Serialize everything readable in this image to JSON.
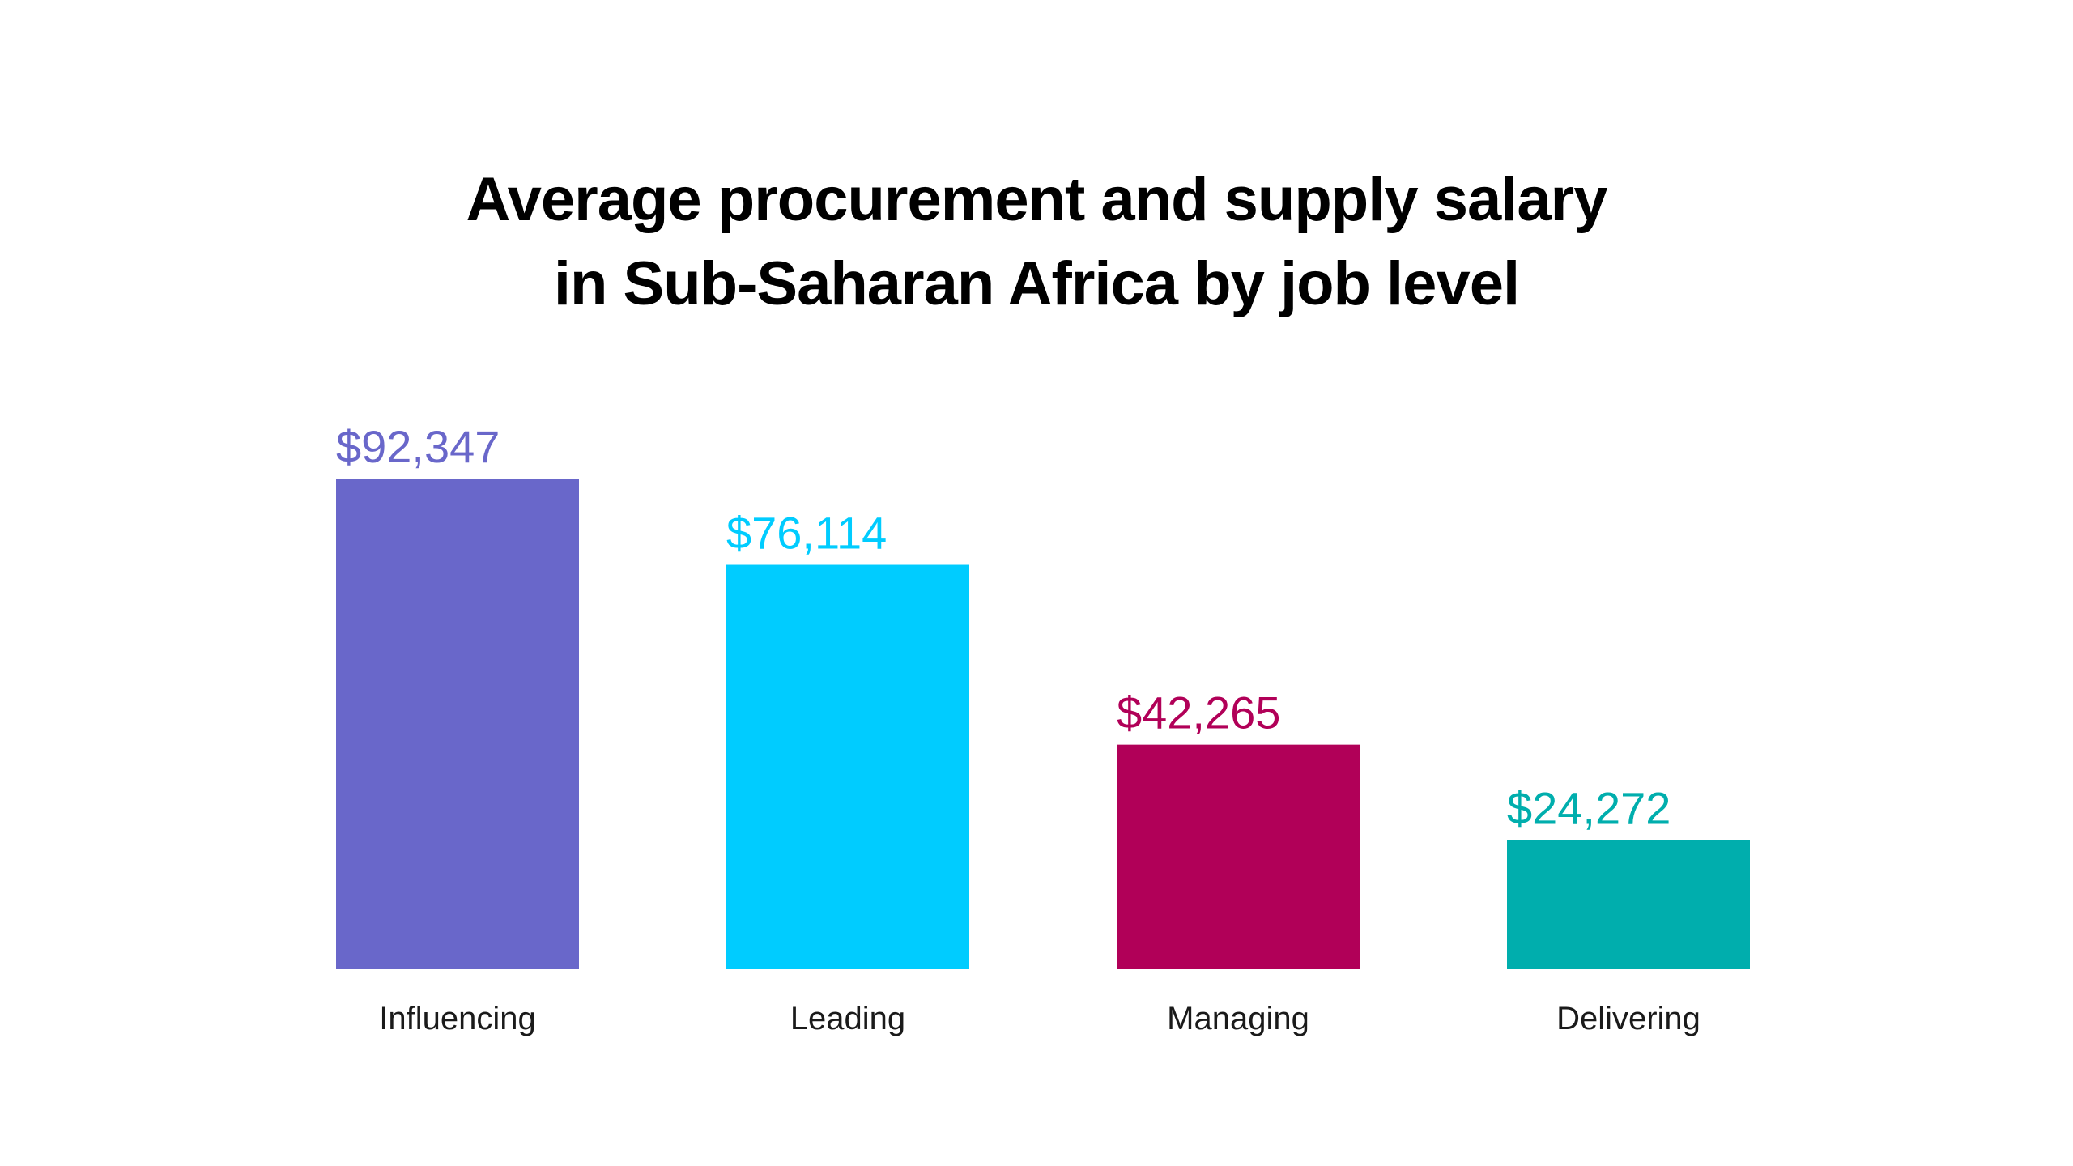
{
  "chart_data": {
    "type": "bar",
    "title_lines": [
      "Average procurement and supply salary",
      "in Sub-Saharan Africa by job level"
    ],
    "categories": [
      "Influencing",
      "Leading",
      "Managing",
      "Delivering"
    ],
    "values": [
      92347,
      76114,
      42265,
      24272
    ],
    "value_labels": [
      "$92,347",
      "$76,114",
      "$42,265",
      "$24,272"
    ],
    "colors": [
      "#6967CA",
      "#00CCFF",
      "#B10058",
      "#00AEAD"
    ],
    "ylim": [
      0,
      92347
    ],
    "grid": false,
    "xlabel": "",
    "ylabel": ""
  }
}
